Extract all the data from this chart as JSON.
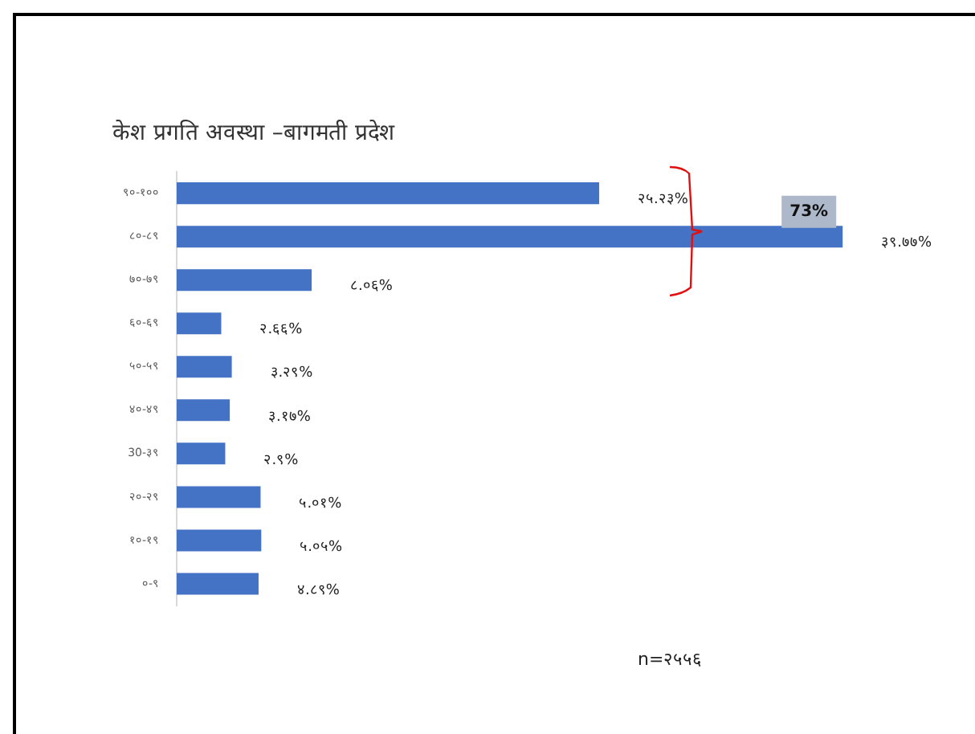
{
  "chart_data": {
    "type": "bar",
    "orientation": "horizontal",
    "title": "केश प्रगति अवस्था –बागमती प्रदेश",
    "categories": [
      "९०-१००",
      "८०-८९",
      "७०-७९",
      "६०-६९",
      "५०-५९",
      "४०-४९",
      "30-३९",
      "२०-२९",
      "१०-१९",
      "०-९"
    ],
    "values": [
      25.23,
      39.77,
      8.06,
      2.66,
      3.29,
      3.17,
      2.9,
      5.01,
      5.05,
      4.89
    ],
    "value_labels": [
      "२५.२३%",
      "३९.७७%",
      "८.०६%",
      "२.६६%",
      "३.२९%",
      "३.१७%",
      "२.९%",
      "५.०१%",
      "५.०५%",
      "४.८९%"
    ],
    "color": "#4472c4",
    "grid": false,
    "legend": false,
    "annotations": [
      "73%",
      "n=२५५६"
    ]
  }
}
